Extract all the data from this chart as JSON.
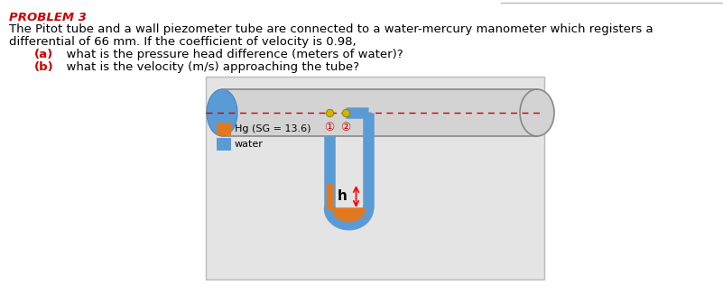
{
  "title": "PROBLEM 3",
  "title_color": "#cc0000",
  "line1": "The Pitot tube and a wall piezometer tube are connected to a water-mercury manometer which registers a",
  "line2": "differential of 66 mm. If the coefficient of velocity is 0.98,",
  "qa_label": "(a)",
  "qa_text": "  what is the pressure head difference (meters of water)?",
  "qb_label": "(b)",
  "qb_text": "  what is the velocity (m/s) approaching the tube?",
  "question_color": "#cc0000",
  "bg_color": "#ffffff",
  "diagram_bg": "#e4e4e4",
  "pipe_fill": "#d3d3d3",
  "pipe_stroke": "#888888",
  "tube_color": "#5b9bd5",
  "mercury_color": "#e07820",
  "dashed_color": "#cc0000",
  "label_1": "①",
  "label_2": "②",
  "h_label": "h",
  "legend_hg": "Hg (SG = 13.6)",
  "legend_water": "water",
  "hg_color": "#e07820",
  "water_color": "#5b9bd5",
  "border_color": "#bbbbbb",
  "top_line_color": "#bbbbbb"
}
